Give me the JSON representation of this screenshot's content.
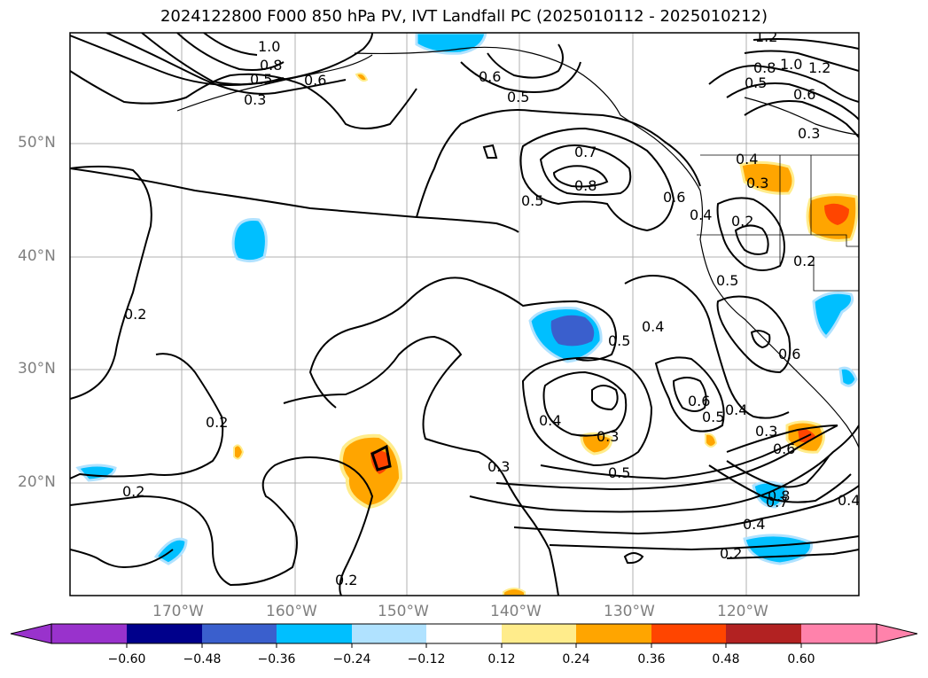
{
  "title": "2024122800 F000 850 hPa PV, IVT Landfall PC (2025010112 - 2025010212)",
  "map": {
    "lat_labels": [
      "50°N",
      "40°N",
      "30°N",
      "20°N"
    ],
    "lon_labels": [
      "170°W",
      "160°W",
      "150°W",
      "140°W",
      "130°W",
      "120°W"
    ],
    "contour_labels": [
      "1.0",
      "0.8",
      "0.6",
      "0.5",
      "0.3",
      "0.6",
      "0.5",
      "0.7",
      "0.8",
      "0.5",
      "0.6",
      "0.4",
      "1.2",
      "0.8",
      "1.0",
      "1.2",
      "0.5",
      "0.6",
      "0.3",
      "0.4",
      "0.3",
      "0.2",
      "0.2",
      "0.5",
      "0.4",
      "0.5",
      "0.6",
      "0.2",
      "0.2",
      "0.2",
      "0.4",
      "0.3",
      "0.6",
      "0.5",
      "0.4",
      "0.3",
      "0.6",
      "0.3",
      "0.5",
      "0.8",
      "0.7",
      "0.4",
      "0.4",
      "0.2",
      "0.2"
    ]
  },
  "colorbar": {
    "ticks": [
      "−0.60",
      "−0.48",
      "−0.36",
      "−0.24",
      "−0.12",
      "0.12",
      "0.24",
      "0.36",
      "0.48",
      "0.60"
    ],
    "colors": [
      "#9932cc",
      "#00008b",
      "#3a5fcd",
      "#00bfff",
      "#b0e2ff",
      "#ffffff",
      "#ffec8b",
      "#ffa500",
      "#ff4500",
      "#b22222",
      "#ff82ab"
    ]
  }
}
